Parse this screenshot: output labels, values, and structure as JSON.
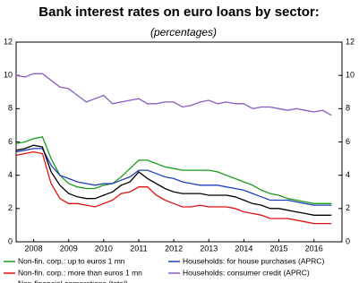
{
  "chart_data": {
    "type": "line",
    "title": "Bank interest rates on euro loans by sector:",
    "subtitle": "(percentages)",
    "x": [
      2008.0,
      2008.25,
      2008.5,
      2008.75,
      2009.0,
      2009.25,
      2009.5,
      2009.75,
      2010.0,
      2010.25,
      2010.5,
      2010.75,
      2011.0,
      2011.25,
      2011.5,
      2011.75,
      2012.0,
      2012.25,
      2012.5,
      2012.75,
      2013.0,
      2013.25,
      2013.5,
      2013.75,
      2014.0,
      2014.25,
      2014.5,
      2014.75,
      2015.0,
      2015.25,
      2015.5,
      2015.75,
      2016.0,
      2016.25,
      2016.5,
      2016.75,
      2017.0
    ],
    "xlim": [
      2008.0,
      2017.3
    ],
    "xticks": [
      {
        "value": 2008.5,
        "label": "2008"
      },
      {
        "value": 2009.5,
        "label": "2009"
      },
      {
        "value": 2010.5,
        "label": "2010"
      },
      {
        "value": 2011.5,
        "label": "2011"
      },
      {
        "value": 2012.5,
        "label": "2012"
      },
      {
        "value": 2013.5,
        "label": "2013"
      },
      {
        "value": 2014.5,
        "label": "2014"
      },
      {
        "value": 2015.5,
        "label": "2015"
      },
      {
        "value": 2016.5,
        "label": "2016"
      }
    ],
    "ylim": [
      0,
      12
    ],
    "yticks": [
      0,
      2,
      4,
      6,
      8,
      10,
      12
    ],
    "y2lim": [
      0,
      12
    ],
    "y2ticks": [
      0,
      2,
      4,
      6,
      8,
      10,
      12
    ],
    "series": [
      {
        "name": "Non-fin. corp.: up to euros 1 mn",
        "color": "#1a9a1a",
        "values": [
          5.9,
          6.0,
          6.2,
          6.3,
          5.0,
          4.0,
          3.5,
          3.3,
          3.2,
          3.2,
          3.4,
          3.5,
          3.9,
          4.4,
          4.9,
          4.9,
          4.7,
          4.5,
          4.4,
          4.3,
          4.3,
          4.3,
          4.3,
          4.2,
          4.0,
          3.8,
          3.6,
          3.4,
          3.1,
          2.9,
          2.8,
          2.6,
          2.5,
          2.4,
          2.3,
          2.3,
          2.3
        ]
      },
      {
        "name": "Households: for house purchases (APRC)",
        "color": "#1f3fb8",
        "values": [
          5.4,
          5.5,
          5.6,
          5.6,
          4.6,
          4.0,
          3.8,
          3.6,
          3.5,
          3.4,
          3.5,
          3.5,
          3.7,
          3.9,
          4.3,
          4.3,
          4.1,
          3.9,
          3.8,
          3.6,
          3.5,
          3.4,
          3.4,
          3.4,
          3.3,
          3.2,
          3.1,
          2.9,
          2.7,
          2.5,
          2.5,
          2.5,
          2.4,
          2.3,
          2.2,
          2.2,
          2.2
        ]
      },
      {
        "name": "Non-fin. corp.: more than euros 1 mn",
        "color": "#e01010",
        "values": [
          5.2,
          5.3,
          5.4,
          5.3,
          3.5,
          2.6,
          2.3,
          2.3,
          2.2,
          2.1,
          2.3,
          2.5,
          2.9,
          3.0,
          3.3,
          3.3,
          2.8,
          2.5,
          2.3,
          2.1,
          2.1,
          2.2,
          2.1,
          2.1,
          2.1,
          2.0,
          1.8,
          1.7,
          1.6,
          1.4,
          1.4,
          1.4,
          1.3,
          1.2,
          1.1,
          1.1,
          1.1
        ]
      },
      {
        "name": "Households: consumer credit (APRC)",
        "color": "#8a5cc0",
        "values": [
          10.0,
          9.9,
          10.1,
          10.1,
          9.7,
          9.3,
          9.2,
          8.8,
          8.4,
          8.6,
          8.8,
          8.3,
          8.4,
          8.5,
          8.6,
          8.3,
          8.3,
          8.4,
          8.4,
          8.1,
          8.2,
          8.4,
          8.5,
          8.3,
          8.4,
          8.3,
          8.3,
          8.0,
          8.1,
          8.1,
          8.0,
          7.9,
          8.0,
          7.9,
          7.8,
          7.9,
          7.6
        ]
      },
      {
        "name": "Non-financial corporations (total)",
        "color": "#000000",
        "values": [
          5.5,
          5.6,
          5.8,
          5.7,
          4.2,
          3.4,
          2.9,
          2.7,
          2.6,
          2.6,
          2.8,
          3.0,
          3.4,
          3.6,
          4.2,
          3.8,
          3.5,
          3.2,
          3.0,
          2.9,
          2.9,
          2.9,
          2.8,
          2.8,
          2.8,
          2.7,
          2.5,
          2.3,
          2.2,
          2.0,
          2.0,
          1.9,
          1.8,
          1.7,
          1.6,
          1.6,
          1.6
        ]
      }
    ]
  }
}
